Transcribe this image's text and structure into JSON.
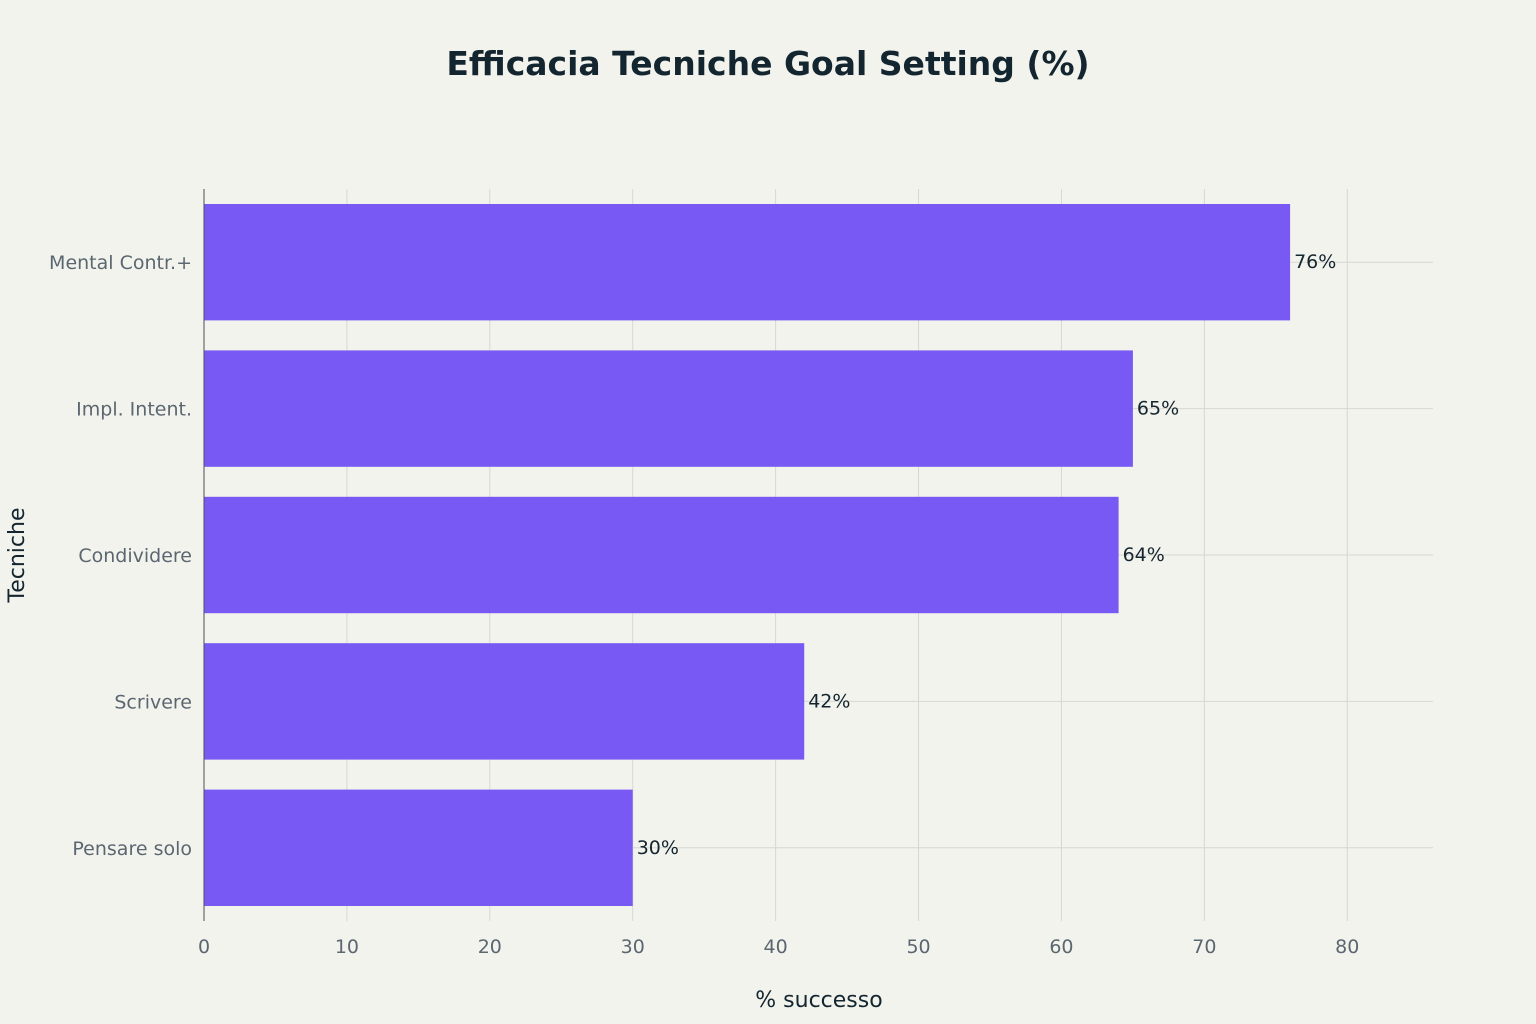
{
  "chart_data": {
    "type": "bar",
    "orientation": "horizontal",
    "title": "Efficacia Tecniche Goal Setting (%)",
    "xlabel": "% successo",
    "ylabel": "Tecniche",
    "categories": [
      "Mental Contr.+",
      "Impl. Intent.",
      "Condividere",
      "Scrivere",
      "Pensare solo"
    ],
    "values": [
      76,
      65,
      64,
      42,
      30
    ],
    "value_labels": [
      "76%",
      "65%",
      "64%",
      "42%",
      "30%"
    ],
    "xlim": [
      0,
      86
    ],
    "xticks": [
      0,
      10,
      20,
      30,
      40,
      50,
      60,
      70,
      80
    ],
    "grid": true,
    "bar_color": "#7859f3",
    "legend": "none"
  }
}
